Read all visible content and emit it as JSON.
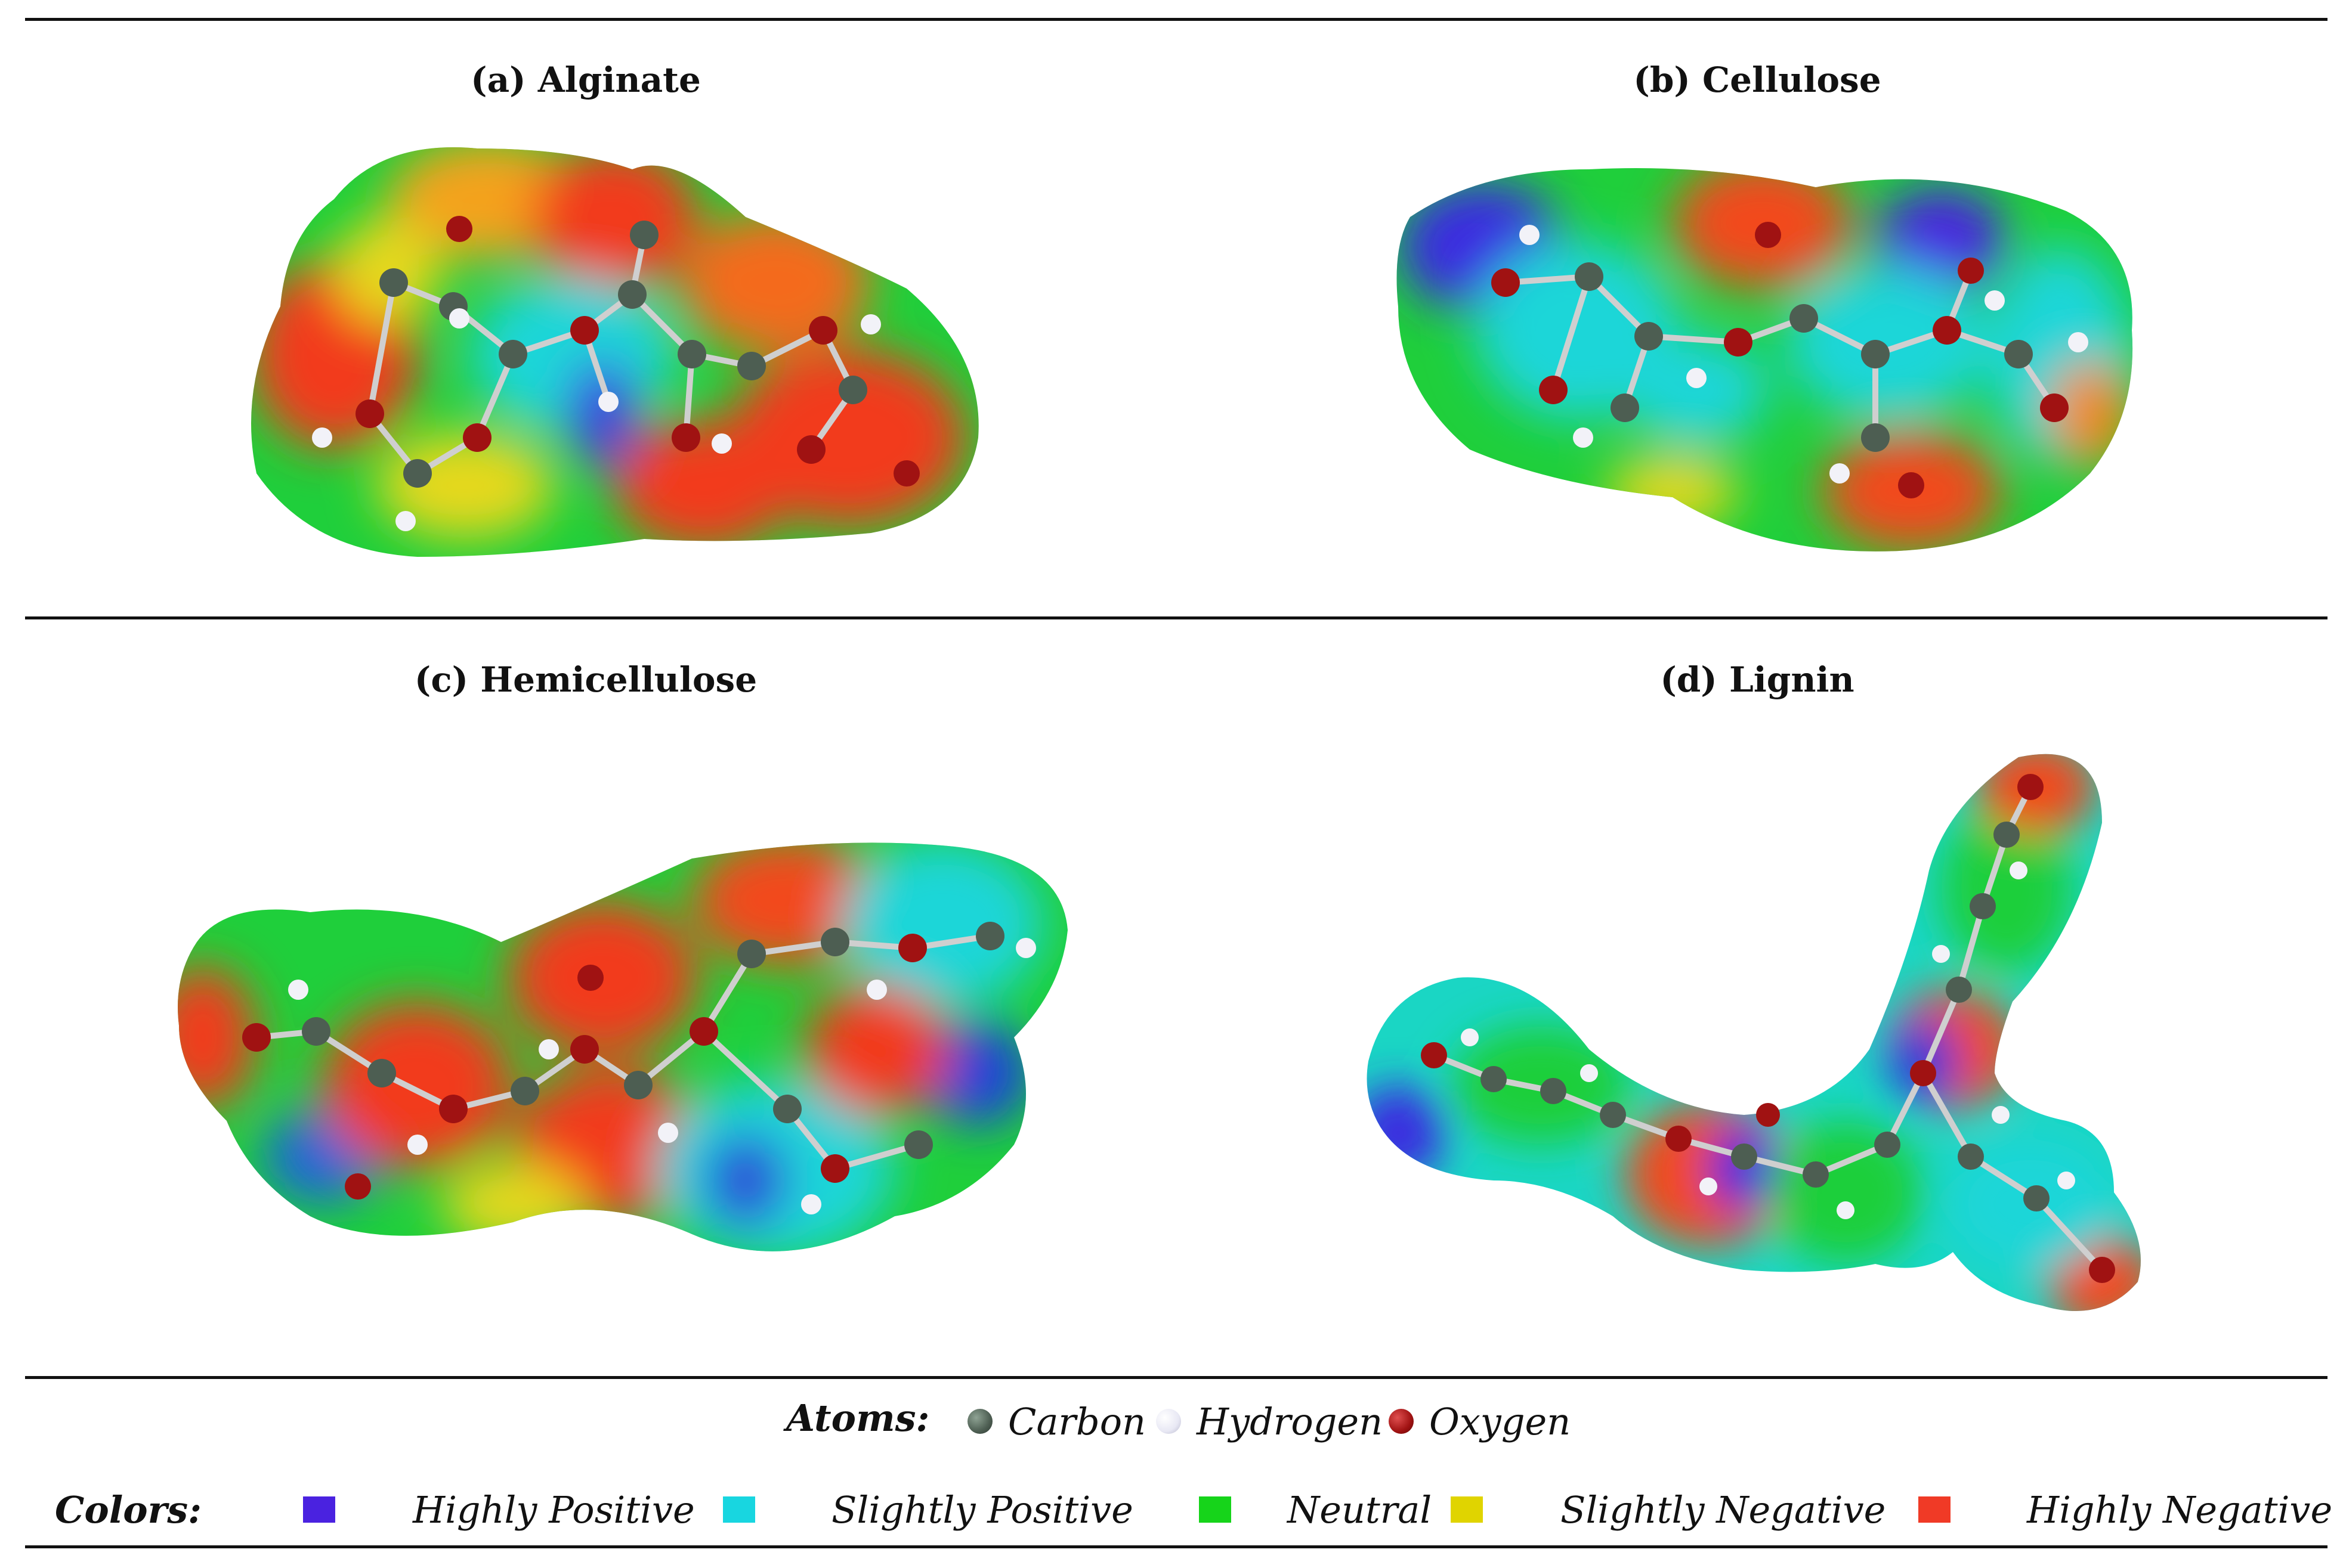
{
  "panels": [
    {
      "id": "a",
      "title": "(a) Alginate"
    },
    {
      "id": "b",
      "title": "(b) Cellulose"
    },
    {
      "id": "c",
      "title": "(c) Hemicellulose"
    },
    {
      "id": "d",
      "title": "(d) Lignin"
    }
  ],
  "legend": {
    "atoms_label": "Atoms:",
    "atoms": [
      {
        "name": "Carbon",
        "color": "#4d5e52"
      },
      {
        "name": "Hydrogen",
        "color": "#e8e8f4"
      },
      {
        "name": "Oxygen",
        "color": "#a01212"
      }
    ],
    "colors_label": "Colors:",
    "colors": [
      {
        "name": "Highly Positive",
        "color": "#4a22e0"
      },
      {
        "name": "Slightly Positive",
        "color": "#18d6e0"
      },
      {
        "name": "Neutral",
        "color": "#16d41a"
      },
      {
        "name": "Slightly Negative",
        "color": "#e0d400"
      },
      {
        "name": "Highly Negative",
        "color": "#f03a26"
      }
    ]
  }
}
